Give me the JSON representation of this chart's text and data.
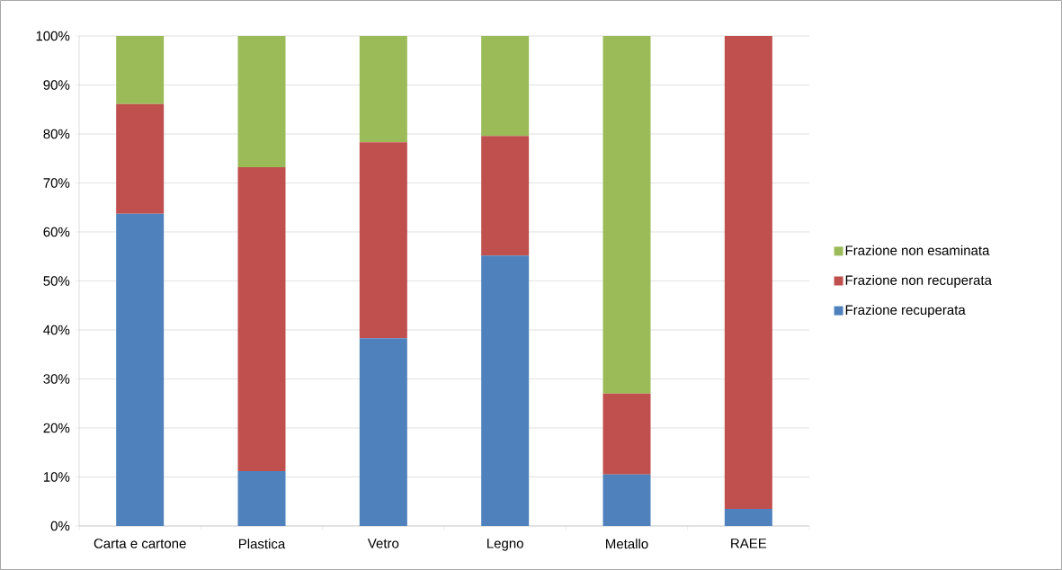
{
  "chart_data": {
    "type": "bar",
    "stacked": true,
    "categories": [
      "Carta e cartone",
      "Plastica",
      "Vetro",
      "Legno",
      "Metallo",
      "RAEE"
    ],
    "series": [
      {
        "name": "Frazione recuperata",
        "color": "#4f81bd",
        "values": [
          63.7,
          11.2,
          38.3,
          55.2,
          10.5,
          3.5
        ]
      },
      {
        "name": "Frazione non recuperata",
        "color": "#c0504d",
        "values": [
          22.4,
          62.0,
          40.0,
          24.4,
          16.5,
          96.5
        ]
      },
      {
        "name": "Frazione non esaminata",
        "color": "#9bbb59",
        "values": [
          13.9,
          26.8,
          21.7,
          20.4,
          73.0,
          0
        ]
      }
    ],
    "ylim": [
      0,
      100
    ],
    "yticks": [
      {
        "value": 0,
        "label": "0%"
      },
      {
        "value": 10,
        "label": "10%"
      },
      {
        "value": 20,
        "label": "20%"
      },
      {
        "value": 30,
        "label": "30%"
      },
      {
        "value": 40,
        "label": "40%"
      },
      {
        "value": 50,
        "label": "50%"
      },
      {
        "value": 60,
        "label": "60%"
      },
      {
        "value": 70,
        "label": "70%"
      },
      {
        "value": 80,
        "label": "80%"
      },
      {
        "value": 90,
        "label": "90%"
      },
      {
        "value": 100,
        "label": "100%"
      }
    ],
    "grid": "y",
    "legend": "right"
  }
}
